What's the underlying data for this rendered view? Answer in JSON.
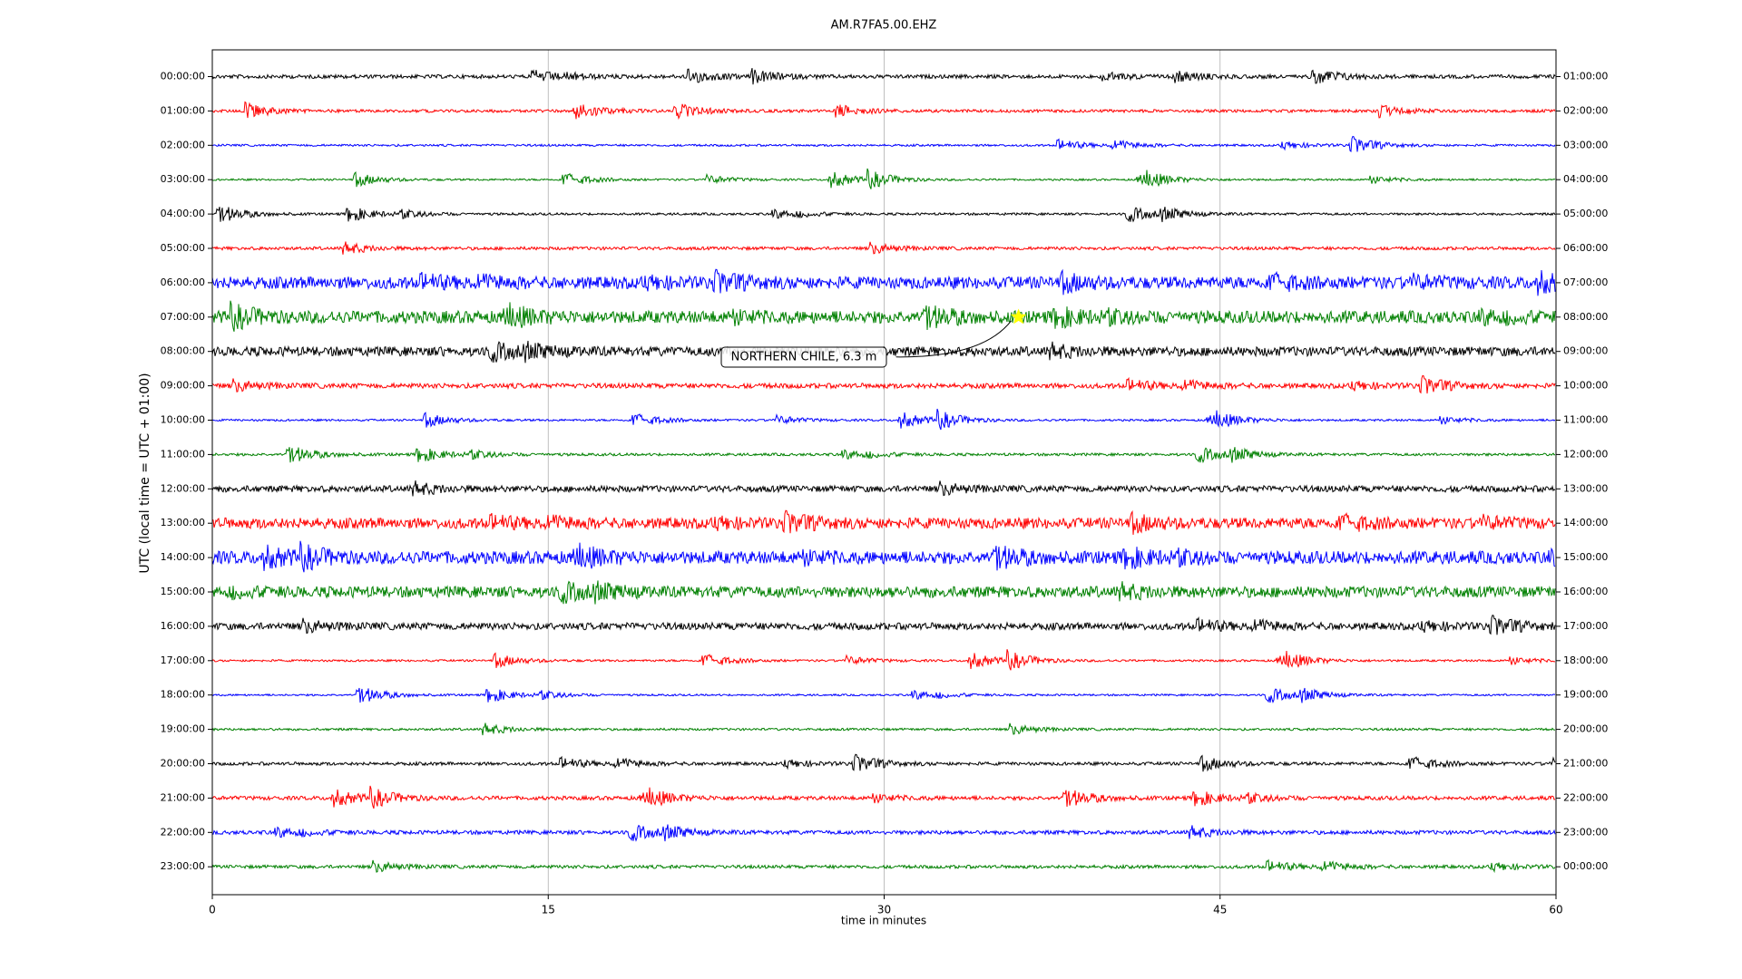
{
  "chart_data": {
    "type": "dayplot",
    "title": "AM.R7FA5.00.EHZ",
    "x_label": "time in minutes",
    "y_label": "UTC (local time = UTC + 01:00)",
    "xlim": [
      0,
      60
    ],
    "xticks": [
      0,
      15,
      30,
      45,
      60
    ],
    "grid": true,
    "colors": [
      "#000000",
      "#ff0000",
      "#0000ff",
      "#008000"
    ],
    "categories": [
      "00:00:00",
      "01:00:00",
      "02:00:00",
      "03:00:00",
      "04:00:00",
      "05:00:00",
      "06:00:00",
      "07:00:00",
      "08:00:00",
      "09:00:00",
      "10:00:00",
      "11:00:00",
      "12:00:00",
      "13:00:00",
      "14:00:00",
      "15:00:00",
      "16:00:00",
      "17:00:00",
      "18:00:00",
      "19:00:00",
      "20:00:00",
      "21:00:00",
      "22:00:00",
      "23:00:00"
    ],
    "right_labels": [
      "01:00:00",
      "02:00:00",
      "03:00:00",
      "04:00:00",
      "05:00:00",
      "06:00:00",
      "07:00:00",
      "08:00:00",
      "09:00:00",
      "10:00:00",
      "11:00:00",
      "12:00:00",
      "13:00:00",
      "14:00:00",
      "15:00:00",
      "16:00:00",
      "17:00:00",
      "18:00:00",
      "19:00:00",
      "20:00:00",
      "21:00:00",
      "22:00:00",
      "23:00:00",
      "00:00:00"
    ],
    "annotation": {
      "label": "NORTHERN CHILE, 6.3 m",
      "x": 36,
      "y": 7
    }
  }
}
